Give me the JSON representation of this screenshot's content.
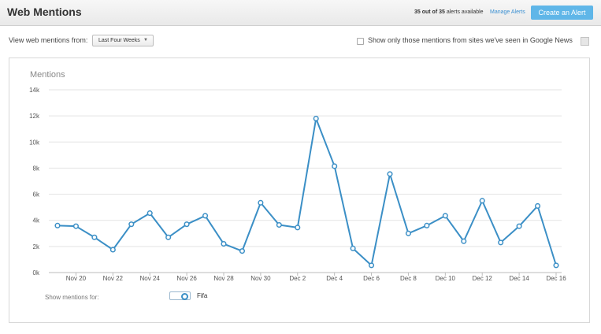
{
  "header": {
    "title": "Web Mentions",
    "alerts_used": "35 out of 35",
    "alerts_suffix": "alerts available",
    "manage_label": "Manage Alerts",
    "create_label": "Create an Alert"
  },
  "filters": {
    "range_label": "View web mentions from:",
    "range_value": "Last Four Weeks",
    "news_label": "Show only those mentions from sites we've seen in Google News",
    "news_checked": false
  },
  "legend": {
    "label": "Show mentions for:",
    "series_name": "Fifa"
  },
  "colors": {
    "accent": "#5fb6e8",
    "line": "#3b8fc6",
    "grid": "#e3e3e3"
  },
  "chart_data": {
    "type": "line",
    "title": "Mentions",
    "ylim": [
      0,
      14000
    ],
    "yticks": [
      "0k",
      "2k",
      "4k",
      "6k",
      "8k",
      "10k",
      "12k",
      "14k"
    ],
    "x_tick_labels": [
      "Nov 20",
      "Nov 22",
      "Nov 24",
      "Nov 26",
      "Nov 28",
      "Nov 30",
      "Dec 2",
      "Dec 4",
      "Dec 6",
      "Dec 8",
      "Dec 10",
      "Dec 12",
      "Dec 14",
      "Dec 16"
    ],
    "x": [
      "Nov 19",
      "Nov 20",
      "Nov 21",
      "Nov 22",
      "Nov 23",
      "Nov 24",
      "Nov 25",
      "Nov 26",
      "Nov 27",
      "Nov 28",
      "Nov 29",
      "Nov 30",
      "Dec 1",
      "Dec 2",
      "Dec 3",
      "Dec 4",
      "Dec 5",
      "Dec 6",
      "Dec 7",
      "Dec 8",
      "Dec 9",
      "Dec 10",
      "Dec 11",
      "Dec 12",
      "Dec 13",
      "Dec 14",
      "Dec 15",
      "Dec 16"
    ],
    "series": [
      {
        "name": "Fifa",
        "values": [
          3600,
          3550,
          2700,
          1750,
          3700,
          4550,
          2700,
          3700,
          4350,
          2200,
          1650,
          5350,
          3650,
          3450,
          11800,
          8150,
          1850,
          550,
          7550,
          3000,
          3600,
          4350,
          2400,
          5500,
          2300,
          3550,
          5100,
          550
        ]
      }
    ],
    "grid": true
  }
}
